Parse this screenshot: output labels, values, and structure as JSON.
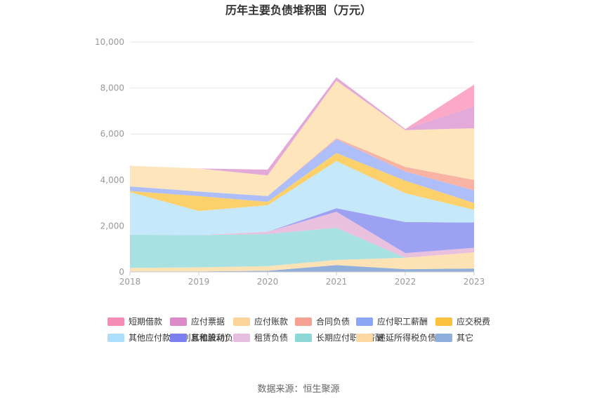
{
  "chart_data": {
    "type": "area",
    "stacked": true,
    "title": "历年主要负债堆积图（万元）",
    "x": [
      "2018",
      "2019",
      "2020",
      "2021",
      "2022",
      "2023"
    ],
    "ylim": [
      0,
      10000
    ],
    "yticks": [
      "0",
      "2,000",
      "4,000",
      "6,000",
      "8,000",
      "10,000"
    ],
    "grid": true,
    "legend_position": "bottom",
    "source": "数据来源：恒生聚源",
    "series": [
      {
        "name": "其它",
        "color": "#92aedb",
        "values": [
          20,
          20,
          50,
          300,
          120,
          150
        ]
      },
      {
        "name": "递延所得税负债",
        "color": "#fde2b5",
        "values": [
          150,
          180,
          200,
          220,
          500,
          700
        ]
      },
      {
        "name": "长期应付职工薪酬",
        "color": "#a8e1e2",
        "values": [
          1450,
          1400,
          1400,
          1400,
          0,
          0
        ]
      },
      {
        "name": "租赁负债",
        "color": "#e9c1de",
        "values": [
          0,
          0,
          100,
          700,
          200,
          200
        ]
      },
      {
        "name": "其他流动负债",
        "color": "#9da1f2",
        "values": [
          0,
          0,
          0,
          150,
          1350,
          1100
        ]
      },
      {
        "name": "其他应付款(含利息和股利)",
        "color": "#c5e9fb",
        "values": [
          1850,
          1050,
          1150,
          2050,
          1250,
          550
        ]
      },
      {
        "name": "应交税费",
        "color": "#fcd16c",
        "values": [
          50,
          650,
          150,
          350,
          550,
          300
        ]
      },
      {
        "name": "应付职工薪酬",
        "color": "#aebef9",
        "values": [
          200,
          200,
          250,
          600,
          400,
          550
        ]
      },
      {
        "name": "合同负债",
        "color": "#f9b3a4",
        "values": [
          0,
          0,
          0,
          50,
          200,
          450
        ]
      },
      {
        "name": "应付账款",
        "color": "#fee5bb",
        "values": [
          900,
          1000,
          900,
          2500,
          1600,
          2250
        ]
      },
      {
        "name": "应付票据",
        "color": "#e3a9d8",
        "values": [
          0,
          0,
          250,
          150,
          50,
          950
        ]
      },
      {
        "name": "短期借款",
        "color": "#fba9c6",
        "values": [
          0,
          0,
          0,
          0,
          0,
          950
        ]
      }
    ],
    "legend_order": [
      "短期借款",
      "应付票据",
      "应付账款",
      "合同负债",
      "应付职工薪酬",
      "应交税费",
      "其他应付款(含利息和股利)",
      "其他流动负债",
      "租赁负债",
      "长期应付职工薪酬",
      "递延所得税负债",
      "其它"
    ],
    "legend_colors": {
      "短期借款": "#f58bb7",
      "应付票据": "#dc8ac8",
      "应付账款": "#fcd59a",
      "合同负债": "#f7a193",
      "应付职工薪酬": "#8ba6f5",
      "应交税费": "#fbc23f",
      "其他应付款(含利息和股利)": "#addffa",
      "其他流动负债": "#7b7ff0",
      "租赁负债": "#e6bfe0",
      "长期应付职工薪酬": "#8dd6d6",
      "递延所得税负债": "#fdd9a2",
      "其它": "#8eaedc"
    }
  }
}
